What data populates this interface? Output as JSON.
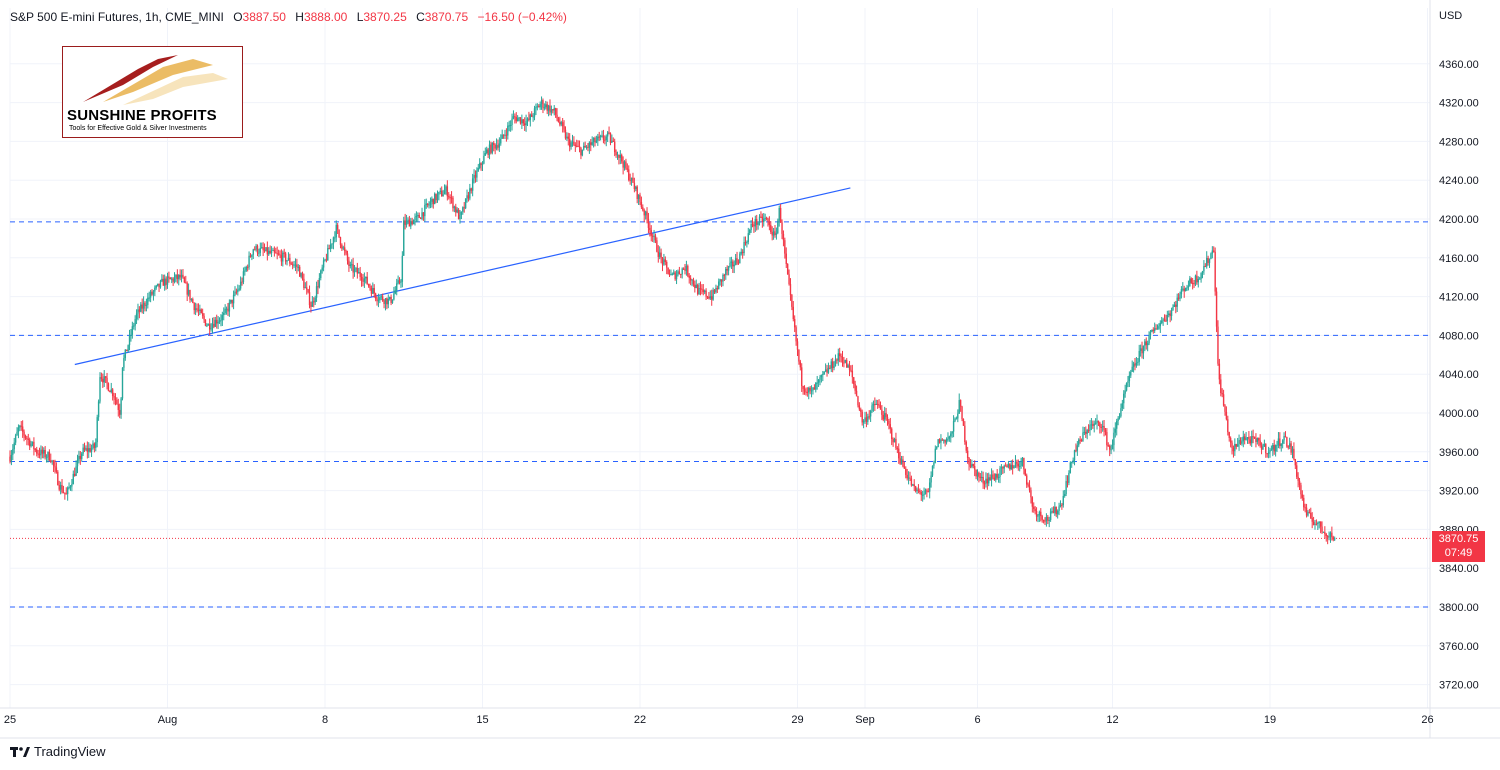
{
  "header": {
    "symbol": "S&P 500 E-mini Futures, 1h, CME_MINI",
    "open_label": "O",
    "open": "3887.50",
    "high_label": "H",
    "high": "3888.00",
    "low_label": "L",
    "low": "3870.25",
    "close_label": "C",
    "close": "3870.75",
    "change": "−16.50 (−0.42%)"
  },
  "currency": "USD",
  "price_tag": {
    "price": "3870.75",
    "countdown": "07:49"
  },
  "logo": {
    "name": "SUNSHINE PROFITS",
    "tagline": "Tools for Effective Gold & Silver Investments"
  },
  "brand": {
    "name": "TradingView"
  },
  "colors": {
    "up": "#26a69a",
    "down": "#f23645",
    "level": "#2962ff",
    "trend": "#2962ff",
    "grid": "#f0f3fa"
  },
  "chart_data": {
    "type": "candlestick",
    "title": "S&P 500 E-mini Futures, 1h, CME_MINI",
    "y_unit": "USD",
    "y_range": [
      3680,
      4400
    ],
    "y_ticks": [
      4360,
      4320,
      4280,
      4240,
      4200,
      4160,
      4120,
      4080,
      4040,
      4000,
      3960,
      3920,
      3880,
      3840,
      3800,
      3760,
      3720
    ],
    "x_range_days": [
      "Jul 25",
      "Sep 26"
    ],
    "x_ticks": [
      {
        "label": "25",
        "day": 0
      },
      {
        "label": "Aug",
        "day": 7
      },
      {
        "label": "8",
        "day": 14
      },
      {
        "label": "15",
        "day": 21
      },
      {
        "label": "22",
        "day": 28
      },
      {
        "label": "29",
        "day": 35
      },
      {
        "label": "Sep",
        "day": 38
      },
      {
        "label": "6",
        "day": 43
      },
      {
        "label": "12",
        "day": 49
      },
      {
        "label": "19",
        "day": 56
      },
      {
        "label": "26",
        "day": 63
      }
    ],
    "horizontal_levels": [
      4197,
      4080,
      3950,
      3800
    ],
    "last_price": 3870.75,
    "trendline": {
      "from": {
        "day": 2.88,
        "price": 4050
      },
      "to": {
        "day": 37.35,
        "price": 4232
      }
    },
    "path": [
      {
        "day": 0.0,
        "price": 3955
      },
      {
        "day": 0.4,
        "price": 3985
      },
      {
        "day": 1.2,
        "price": 3960
      },
      {
        "day": 1.8,
        "price": 3955
      },
      {
        "day": 2.2,
        "price": 3925
      },
      {
        "day": 2.5,
        "price": 3915
      },
      {
        "day": 3.2,
        "price": 3960
      },
      {
        "day": 3.8,
        "price": 3965
      },
      {
        "day": 4.0,
        "price": 4040
      },
      {
        "day": 4.6,
        "price": 4020
      },
      {
        "day": 4.9,
        "price": 4000
      },
      {
        "day": 5.0,
        "price": 4050
      },
      {
        "day": 5.6,
        "price": 4100
      },
      {
        "day": 6.2,
        "price": 4120
      },
      {
        "day": 6.8,
        "price": 4135
      },
      {
        "day": 7.6,
        "price": 4140
      },
      {
        "day": 8.2,
        "price": 4110
      },
      {
        "day": 8.8,
        "price": 4090
      },
      {
        "day": 9.5,
        "price": 4100
      },
      {
        "day": 10.2,
        "price": 4130
      },
      {
        "day": 10.8,
        "price": 4170
      },
      {
        "day": 11.5,
        "price": 4165
      },
      {
        "day": 12.2,
        "price": 4160
      },
      {
        "day": 12.8,
        "price": 4150
      },
      {
        "day": 13.4,
        "price": 4110
      },
      {
        "day": 13.9,
        "price": 4150
      },
      {
        "day": 14.5,
        "price": 4190
      },
      {
        "day": 15.1,
        "price": 4150
      },
      {
        "day": 15.7,
        "price": 4140
      },
      {
        "day": 16.3,
        "price": 4120
      },
      {
        "day": 16.9,
        "price": 4115
      },
      {
        "day": 17.4,
        "price": 4140
      },
      {
        "day": 17.5,
        "price": 4195
      },
      {
        "day": 18.1,
        "price": 4200
      },
      {
        "day": 18.8,
        "price": 4220
      },
      {
        "day": 19.4,
        "price": 4230
      },
      {
        "day": 20.0,
        "price": 4200
      },
      {
        "day": 20.6,
        "price": 4240
      },
      {
        "day": 21.2,
        "price": 4270
      },
      {
        "day": 21.8,
        "price": 4280
      },
      {
        "day": 22.4,
        "price": 4305
      },
      {
        "day": 23.0,
        "price": 4300
      },
      {
        "day": 23.6,
        "price": 4320
      },
      {
        "day": 24.2,
        "price": 4310
      },
      {
        "day": 24.8,
        "price": 4280
      },
      {
        "day": 25.4,
        "price": 4270
      },
      {
        "day": 26.0,
        "price": 4280
      },
      {
        "day": 26.6,
        "price": 4285
      },
      {
        "day": 27.2,
        "price": 4260
      },
      {
        "day": 27.8,
        "price": 4230
      },
      {
        "day": 28.3,
        "price": 4200
      },
      {
        "day": 28.9,
        "price": 4160
      },
      {
        "day": 29.4,
        "price": 4140
      },
      {
        "day": 30.0,
        "price": 4150
      },
      {
        "day": 30.6,
        "price": 4125
      },
      {
        "day": 31.2,
        "price": 4120
      },
      {
        "day": 31.8,
        "price": 4145
      },
      {
        "day": 32.4,
        "price": 4160
      },
      {
        "day": 33.0,
        "price": 4195
      },
      {
        "day": 33.6,
        "price": 4200
      },
      {
        "day": 34.0,
        "price": 4180
      },
      {
        "day": 34.2,
        "price": 4210
      },
      {
        "day": 34.5,
        "price": 4150
      },
      {
        "day": 34.9,
        "price": 4080
      },
      {
        "day": 35.2,
        "price": 4030
      },
      {
        "day": 35.6,
        "price": 4020
      },
      {
        "day": 36.2,
        "price": 4040
      },
      {
        "day": 36.9,
        "price": 4060
      },
      {
        "day": 37.4,
        "price": 4040
      },
      {
        "day": 37.9,
        "price": 3990
      },
      {
        "day": 38.5,
        "price": 4010
      },
      {
        "day": 39.0,
        "price": 3990
      },
      {
        "day": 39.6,
        "price": 3950
      },
      {
        "day": 40.2,
        "price": 3920
      },
      {
        "day": 40.8,
        "price": 3915
      },
      {
        "day": 41.2,
        "price": 3970
      },
      {
        "day": 41.8,
        "price": 3975
      },
      {
        "day": 42.2,
        "price": 4010
      },
      {
        "day": 42.6,
        "price": 3950
      },
      {
        "day": 43.2,
        "price": 3930
      },
      {
        "day": 43.8,
        "price": 3935
      },
      {
        "day": 44.4,
        "price": 3945
      },
      {
        "day": 45.0,
        "price": 3950
      },
      {
        "day": 45.5,
        "price": 3900
      },
      {
        "day": 46.1,
        "price": 3890
      },
      {
        "day": 46.7,
        "price": 3905
      },
      {
        "day": 47.3,
        "price": 3960
      },
      {
        "day": 47.9,
        "price": 3985
      },
      {
        "day": 48.5,
        "price": 3990
      },
      {
        "day": 48.9,
        "price": 3960
      },
      {
        "day": 49.3,
        "price": 4000
      },
      {
        "day": 49.8,
        "price": 4040
      },
      {
        "day": 50.4,
        "price": 4070
      },
      {
        "day": 51.0,
        "price": 4090
      },
      {
        "day": 51.6,
        "price": 4105
      },
      {
        "day": 52.2,
        "price": 4130
      },
      {
        "day": 52.8,
        "price": 4140
      },
      {
        "day": 53.3,
        "price": 4160
      },
      {
        "day": 53.5,
        "price": 4170
      },
      {
        "day": 53.7,
        "price": 4040
      },
      {
        "day": 54.0,
        "price": 4000
      },
      {
        "day": 54.3,
        "price": 3960
      },
      {
        "day": 54.8,
        "price": 3975
      },
      {
        "day": 55.4,
        "price": 3970
      },
      {
        "day": 56.0,
        "price": 3960
      },
      {
        "day": 56.6,
        "price": 3975
      },
      {
        "day": 57.0,
        "price": 3960
      },
      {
        "day": 57.3,
        "price": 3925
      },
      {
        "day": 57.6,
        "price": 3895
      },
      {
        "day": 58.0,
        "price": 3888
      },
      {
        "day": 58.4,
        "price": 3878
      },
      {
        "day": 58.9,
        "price": 3870.75
      }
    ]
  }
}
